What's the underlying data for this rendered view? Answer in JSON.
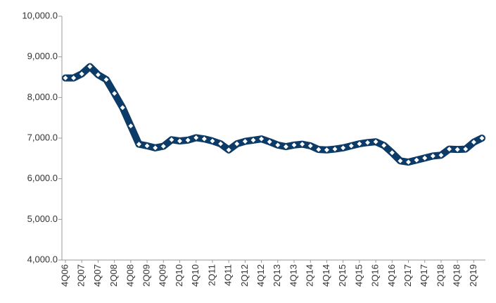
{
  "chart_data": {
    "type": "line",
    "categories": [
      "4Q06",
      null,
      "2Q07",
      null,
      "4Q07",
      null,
      "2Q08",
      null,
      "4Q08",
      null,
      "2Q09",
      null,
      "4Q09",
      null,
      "2Q10",
      null,
      "4Q10",
      null,
      "2Q11",
      null,
      "4Q11",
      null,
      "2Q12",
      null,
      "4Q12",
      null,
      "2Q13",
      null,
      "4Q13",
      null,
      "2Q14",
      null,
      "4Q14",
      null,
      "2Q15",
      null,
      "4Q15",
      null,
      "2Q16",
      null,
      "4Q16",
      null,
      "2Q17",
      null,
      "4Q17",
      null,
      "2Q18",
      null,
      "4Q18",
      null,
      "2Q19",
      null
    ],
    "series": [
      {
        "color": "#0b3b66",
        "marker_color": "#ffffff",
        "values": [
          8480,
          8480,
          8580,
          8760,
          8560,
          8440,
          8100,
          7750,
          7300,
          6850,
          6810,
          6760,
          6800,
          6960,
          6930,
          6950,
          7010,
          6980,
          6930,
          6860,
          6710,
          6860,
          6920,
          6950,
          6980,
          6910,
          6830,
          6790,
          6830,
          6850,
          6810,
          6720,
          6710,
          6730,
          6760,
          6810,
          6860,
          6890,
          6910,
          6820,
          6640,
          6440,
          6410,
          6460,
          6510,
          6560,
          6580,
          6730,
          6720,
          6730,
          6900,
          7000
        ]
      }
    ],
    "ylim": [
      4000,
      10000
    ],
    "yticks": [
      {
        "value": 4000,
        "label": "4,000.0"
      },
      {
        "value": 5000,
        "label": "5,000.0"
      },
      {
        "value": 6000,
        "label": "6,000.0"
      },
      {
        "value": 7000,
        "label": "7,000.0"
      },
      {
        "value": 8000,
        "label": "8,000.0"
      },
      {
        "value": 9000,
        "label": "9,000.0"
      },
      {
        "value": 10000,
        "label": "10,000.0"
      }
    ],
    "grid": false
  }
}
